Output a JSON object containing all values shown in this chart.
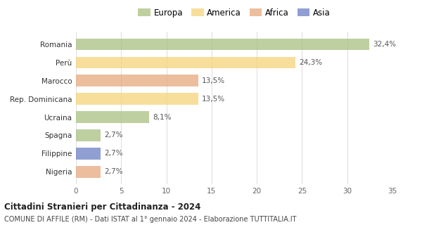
{
  "categories": [
    "Nigeria",
    "Filippine",
    "Spagna",
    "Ucraina",
    "Rep. Dominicana",
    "Marocco",
    "Perù",
    "Romania"
  ],
  "values": [
    2.7,
    2.7,
    2.7,
    8.1,
    13.5,
    13.5,
    24.3,
    32.4
  ],
  "bar_colors": [
    "#e8a87c",
    "#6b7fc4",
    "#a8c080",
    "#a8c080",
    "#f5d478",
    "#e8a87c",
    "#f5d478",
    "#a8c080"
  ],
  "labels": [
    "2,7%",
    "2,7%",
    "2,7%",
    "8,1%",
    "13,5%",
    "13,5%",
    "24,3%",
    "32,4%"
  ],
  "legend_labels": [
    "Europa",
    "America",
    "Africa",
    "Asia"
  ],
  "legend_colors": [
    "#a8c080",
    "#f5d478",
    "#e8a87c",
    "#6b7fc4"
  ],
  "title": "Cittadini Stranieri per Cittadinanza - 2024",
  "subtitle": "COMUNE DI AFFILE (RM) - Dati ISTAT al 1° gennaio 2024 - Elaborazione TUTTITALIA.IT",
  "xlim": [
    0,
    35
  ],
  "xticks": [
    0,
    5,
    10,
    15,
    20,
    25,
    30,
    35
  ],
  "bg_color": "#ffffff",
  "grid_color": "#e0e0e0",
  "bar_alpha": 0.75
}
